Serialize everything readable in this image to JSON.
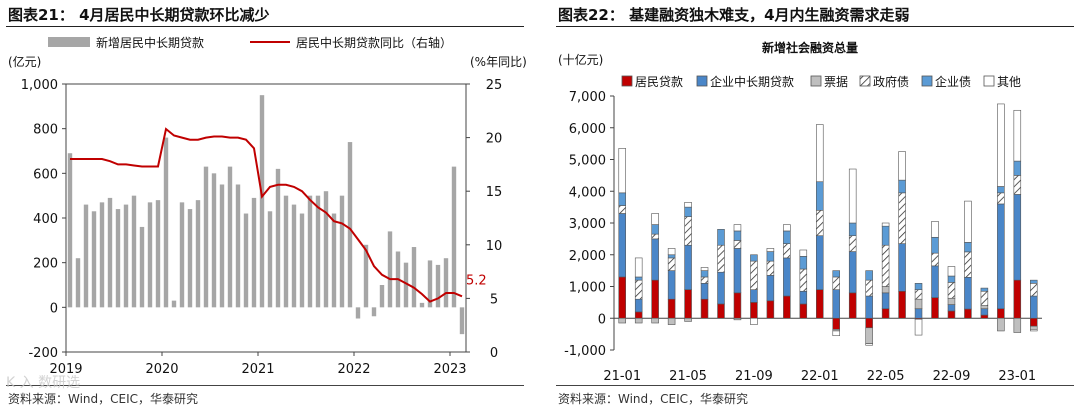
{
  "left": {
    "title": "图表21： 4月居民中长期贷款环比减少",
    "source": "资料来源：Wind，CEIC，华泰研究",
    "chart_data": {
      "type": "bar+line",
      "legend": [
        "新增居民中长期贷款",
        "居民中长期贷款同比（右轴）"
      ],
      "ylabel_left": "(亿元)",
      "ylabel_right": "(%年同比)",
      "ylim_left": [
        -200,
        1000
      ],
      "yticks_left": [
        "-200",
        "0",
        "200",
        "400",
        "600",
        "800",
        "1,000"
      ],
      "yticks_left_values": [
        -200,
        0,
        200,
        400,
        600,
        800,
        1000
      ],
      "ylim_right": [
        0,
        25
      ],
      "yticks_right": [
        "0",
        "5",
        "10",
        "15",
        "20",
        "25"
      ],
      "yticks_right_values": [
        0,
        5,
        10,
        15,
        20,
        25
      ],
      "xticks": [
        "2019",
        "2020",
        "2021",
        "2022",
        "2023"
      ],
      "xtick_index": [
        0,
        12,
        24,
        36,
        48
      ],
      "bars": [
        690,
        220,
        460,
        430,
        470,
        490,
        440,
        460,
        500,
        360,
        470,
        480,
        760,
        30,
        470,
        440,
        480,
        630,
        600,
        550,
        630,
        550,
        420,
        490,
        950,
        430,
        620,
        500,
        460,
        420,
        500,
        500,
        520,
        420,
        500,
        740,
        -50,
        280,
        -40,
        100,
        340,
        250,
        200,
        270,
        20,
        210,
        190,
        220,
        630,
        -120
      ],
      "line": [
        18,
        18,
        18,
        18,
        18,
        17.8,
        17.5,
        17.5,
        17.4,
        17.3,
        17.3,
        17.3,
        20.8,
        20.2,
        20.0,
        19.8,
        19.8,
        20.0,
        20.1,
        20.1,
        20.0,
        20.0,
        19.8,
        19.0,
        14.5,
        15.4,
        15.6,
        15.6,
        15.4,
        15.0,
        14.2,
        13.5,
        13.0,
        12.2,
        12.0,
        11.5,
        10.5,
        9.5,
        8.0,
        7.2,
        6.8,
        6.8,
        6.4,
        6.0,
        5.4,
        4.7,
        5.0,
        5.5,
        5.5,
        5.2
      ],
      "annotation": "5.2",
      "bar_color": "#a6a6a6",
      "line_color": "#c00000"
    }
  },
  "right": {
    "title": "图表22： 基建融资独木难支，4月内生融资需求走弱",
    "source": "资料来源：Wind，CEIC，华泰研究",
    "chart_data": {
      "type": "stacked-bar",
      "title": "新增社会融资总量",
      "ylabel": "(十亿元)",
      "ylim": [
        -1000,
        7000
      ],
      "yticks": [
        "-1,000",
        "0",
        "1,000",
        "2,000",
        "3,000",
        "4,000",
        "5,000",
        "6,000",
        "7,000"
      ],
      "ytick_values": [
        -1000,
        0,
        1000,
        2000,
        3000,
        4000,
        5000,
        6000,
        7000
      ],
      "xticks": [
        "21-01",
        "21-05",
        "21-09",
        "22-01",
        "22-05",
        "22-09",
        "23-01"
      ],
      "xtick_index": [
        0,
        4,
        8,
        12,
        16,
        20,
        24
      ],
      "legend": [
        "居民贷款",
        "企业中长期贷款",
        "票据",
        "政府债",
        "企业债",
        "其他"
      ],
      "series": [
        {
          "name": "居民贷款",
          "color": "#c00000",
          "values": [
            1300,
            200,
            1200,
            600,
            900,
            600,
            450,
            800,
            500,
            550,
            700,
            450,
            900,
            -350,
            800,
            -300,
            300,
            850,
            -30,
            650,
            230,
            290,
            100,
            300,
            1200,
            -250
          ]
        },
        {
          "name": "企业中长期贷款",
          "color": "#4a86c8",
          "values": [
            2000,
            400,
            1300,
            900,
            1400,
            500,
            1000,
            1400,
            400,
            800,
            1200,
            400,
            1700,
            900,
            1300,
            700,
            500,
            1500,
            300,
            1000,
            200,
            1000,
            200,
            3300,
            2700,
            700
          ]
        },
        {
          "name": "票据",
          "color": "#bfbfbf",
          "values": [
            -150,
            -150,
            -150,
            -200,
            -100,
            0,
            0,
            -50,
            0,
            0,
            0,
            0,
            0,
            -50,
            0,
            -500,
            200,
            0,
            300,
            0,
            200,
            0,
            100,
            -400,
            -450,
            -100
          ]
        },
        {
          "name": "政府债",
          "color": "hatch",
          "values": [
            250,
            600,
            150,
            400,
            900,
            200,
            850,
            250,
            900,
            450,
            450,
            700,
            800,
            400,
            500,
            500,
            1300,
            1600,
            300,
            400,
            500,
            800,
            450,
            350,
            600,
            400
          ]
        },
        {
          "name": "企业债",
          "color": "#5b9bd5",
          "values": [
            400,
            100,
            300,
            100,
            300,
            200,
            500,
            300,
            200,
            300,
            400,
            400,
            900,
            200,
            400,
            300,
            600,
            400,
            200,
            500,
            200,
            300,
            100,
            200,
            450,
            100
          ]
        },
        {
          "name": "其他",
          "color": "#ffffff",
          "values": [
            1400,
            600,
            350,
            200,
            150,
            100,
            0,
            200,
            -200,
            100,
            200,
            200,
            1800,
            -150,
            1700,
            -50,
            100,
            900,
            -500,
            500,
            300,
            1300,
            0,
            2600,
            1600,
            -50
          ]
        }
      ]
    }
  },
  "watermark": "K 入 数研选"
}
